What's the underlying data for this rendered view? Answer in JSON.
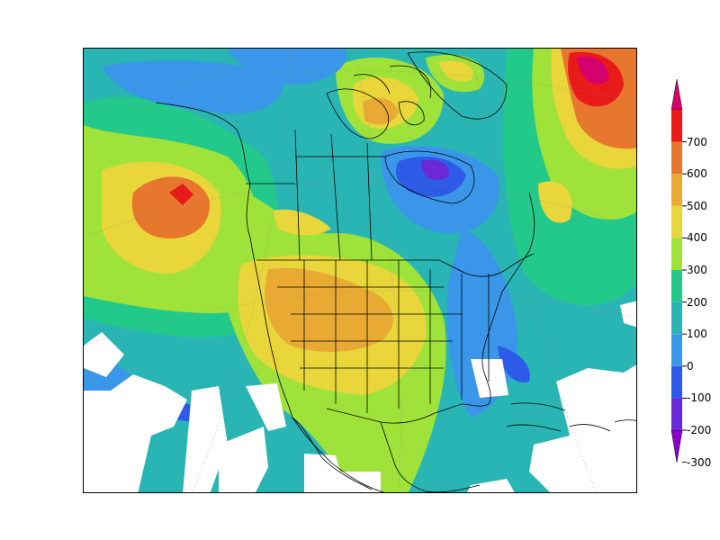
{
  "colorbar": {
    "colors": [
      "#8a00cc",
      "#6a28d8",
      "#2e5ae8",
      "#3a96e8",
      "#2ab5b5",
      "#22c98a",
      "#9ee23a",
      "#e8d63a",
      "#e8aa33",
      "#e8772e",
      "#e81a1a",
      "#d6006e"
    ],
    "ticks": [
      "700",
      "600",
      "500",
      "400",
      "300",
      "200",
      "100",
      "0",
      "-100",
      "-200",
      "-300"
    ]
  }
}
